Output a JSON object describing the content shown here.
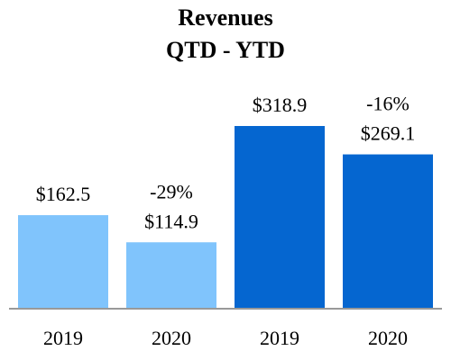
{
  "chart_data": {
    "type": "bar",
    "title": "Revenues",
    "subtitle": "QTD - YTD",
    "categories": [
      "2019",
      "2020",
      "2019",
      "2020"
    ],
    "values": [
      162.5,
      114.9,
      318.9,
      269.1
    ],
    "value_labels": [
      "$162.5",
      "$114.9",
      "$318.9",
      "$269.1"
    ],
    "change_labels": [
      null,
      "-29%",
      null,
      "-16%"
    ],
    "colors": [
      "#80c4fc",
      "#80c4fc",
      "#0566d0",
      "#0566d0"
    ]
  }
}
